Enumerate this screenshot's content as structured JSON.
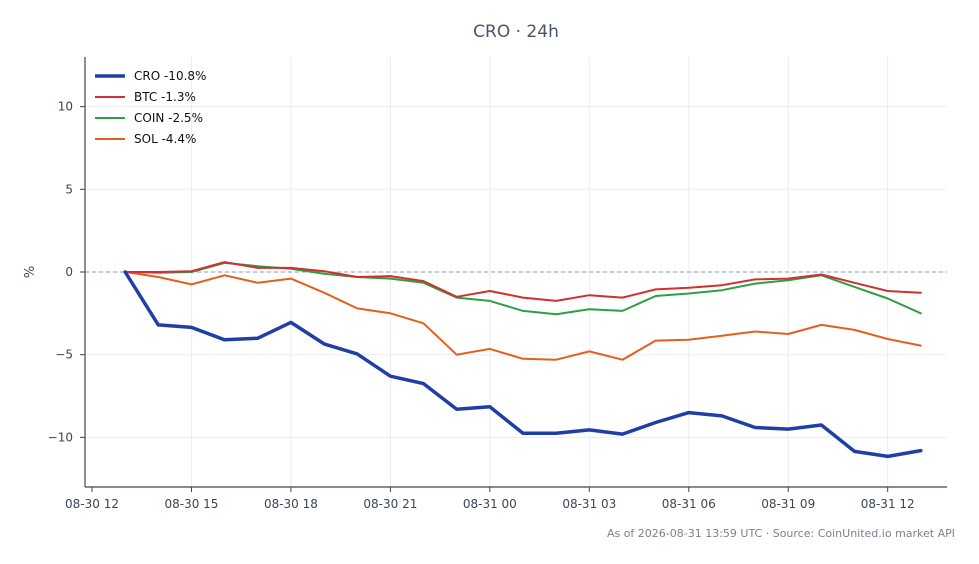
{
  "chart_data": {
    "type": "line",
    "title": "CRO · 24h",
    "ylabel": "%",
    "xlabel": "",
    "xlim": [
      "2026-08-30 12:00",
      "2026-08-31 14:00"
    ],
    "ylim": [
      -13,
      13
    ],
    "x_ticks": [
      "08-30 12",
      "08-30 15",
      "08-30 18",
      "08-30 21",
      "08-31 00",
      "08-31 03",
      "08-31 06",
      "08-31 09",
      "08-31 12"
    ],
    "y_ticks": [
      10,
      5,
      0,
      -5,
      -10
    ],
    "grid": true,
    "legend_position": "top-left",
    "reference_line": 0,
    "x": [
      "2026-08-30 13:00",
      "2026-08-30 14:00",
      "2026-08-30 15:00",
      "2026-08-30 16:00",
      "2026-08-30 17:00",
      "2026-08-30 18:00",
      "2026-08-30 19:00",
      "2026-08-30 20:00",
      "2026-08-30 21:00",
      "2026-08-30 22:00",
      "2026-08-30 23:00",
      "2026-08-31 00:00",
      "2026-08-31 01:00",
      "2026-08-31 02:00",
      "2026-08-31 03:00",
      "2026-08-31 04:00",
      "2026-08-31 05:00",
      "2026-08-31 06:00",
      "2026-08-31 07:00",
      "2026-08-31 08:00",
      "2026-08-31 09:00",
      "2026-08-31 10:00",
      "2026-08-31 11:00",
      "2026-08-31 12:00",
      "2026-08-31 13:00"
    ],
    "series": [
      {
        "name": "CRO -10.8%",
        "color": "#1f3fa6",
        "width": 3.5,
        "values": [
          0,
          -3.2,
          -3.35,
          -4.1,
          -4.0,
          -3.05,
          -4.35,
          -4.95,
          -6.3,
          -6.75,
          -8.3,
          -8.15,
          -9.75,
          -9.75,
          -9.55,
          -9.8,
          -9.1,
          -8.5,
          -8.7,
          -9.4,
          -9.5,
          -9.25,
          -10.85,
          -11.15,
          -10.8
        ]
      },
      {
        "name": "BTC -1.3%",
        "color": "#d03030",
        "width": 2,
        "values": [
          0,
          0,
          0.05,
          0.6,
          0.25,
          0.25,
          0.05,
          -0.3,
          -0.25,
          -0.55,
          -1.5,
          -1.15,
          -1.55,
          -1.75,
          -1.4,
          -1.55,
          -1.05,
          -0.95,
          -0.8,
          -0.45,
          -0.4,
          -0.15,
          -0.65,
          -1.15,
          -1.25
        ]
      },
      {
        "name": "COIN -2.5%",
        "color": "#2ea043",
        "width": 2,
        "values": [
          0,
          -0.05,
          0,
          0.55,
          0.35,
          0.2,
          -0.1,
          -0.3,
          -0.4,
          -0.65,
          -1.55,
          -1.75,
          -2.35,
          -2.55,
          -2.25,
          -2.35,
          -1.45,
          -1.3,
          -1.1,
          -0.7,
          -0.5,
          -0.2,
          -0.9,
          -1.6,
          -2.5
        ]
      },
      {
        "name": "SOL -4.4%",
        "color": "#e2601a",
        "width": 2,
        "values": [
          0,
          -0.3,
          -0.75,
          -0.2,
          -0.65,
          -0.4,
          -1.25,
          -2.2,
          -2.5,
          -3.1,
          -5.0,
          -4.65,
          -5.25,
          -5.3,
          -4.8,
          -5.3,
          -4.15,
          -4.1,
          -3.85,
          -3.6,
          -3.75,
          -3.2,
          -3.5,
          -4.05,
          -4.45
        ]
      }
    ]
  },
  "footer": "As of 2026-08-31 13:59 UTC · Source: CoinUnited.io market API",
  "colors": {
    "axis": "#3c4654",
    "grid": "#ececec",
    "reference_line": "#8a9bb5"
  }
}
